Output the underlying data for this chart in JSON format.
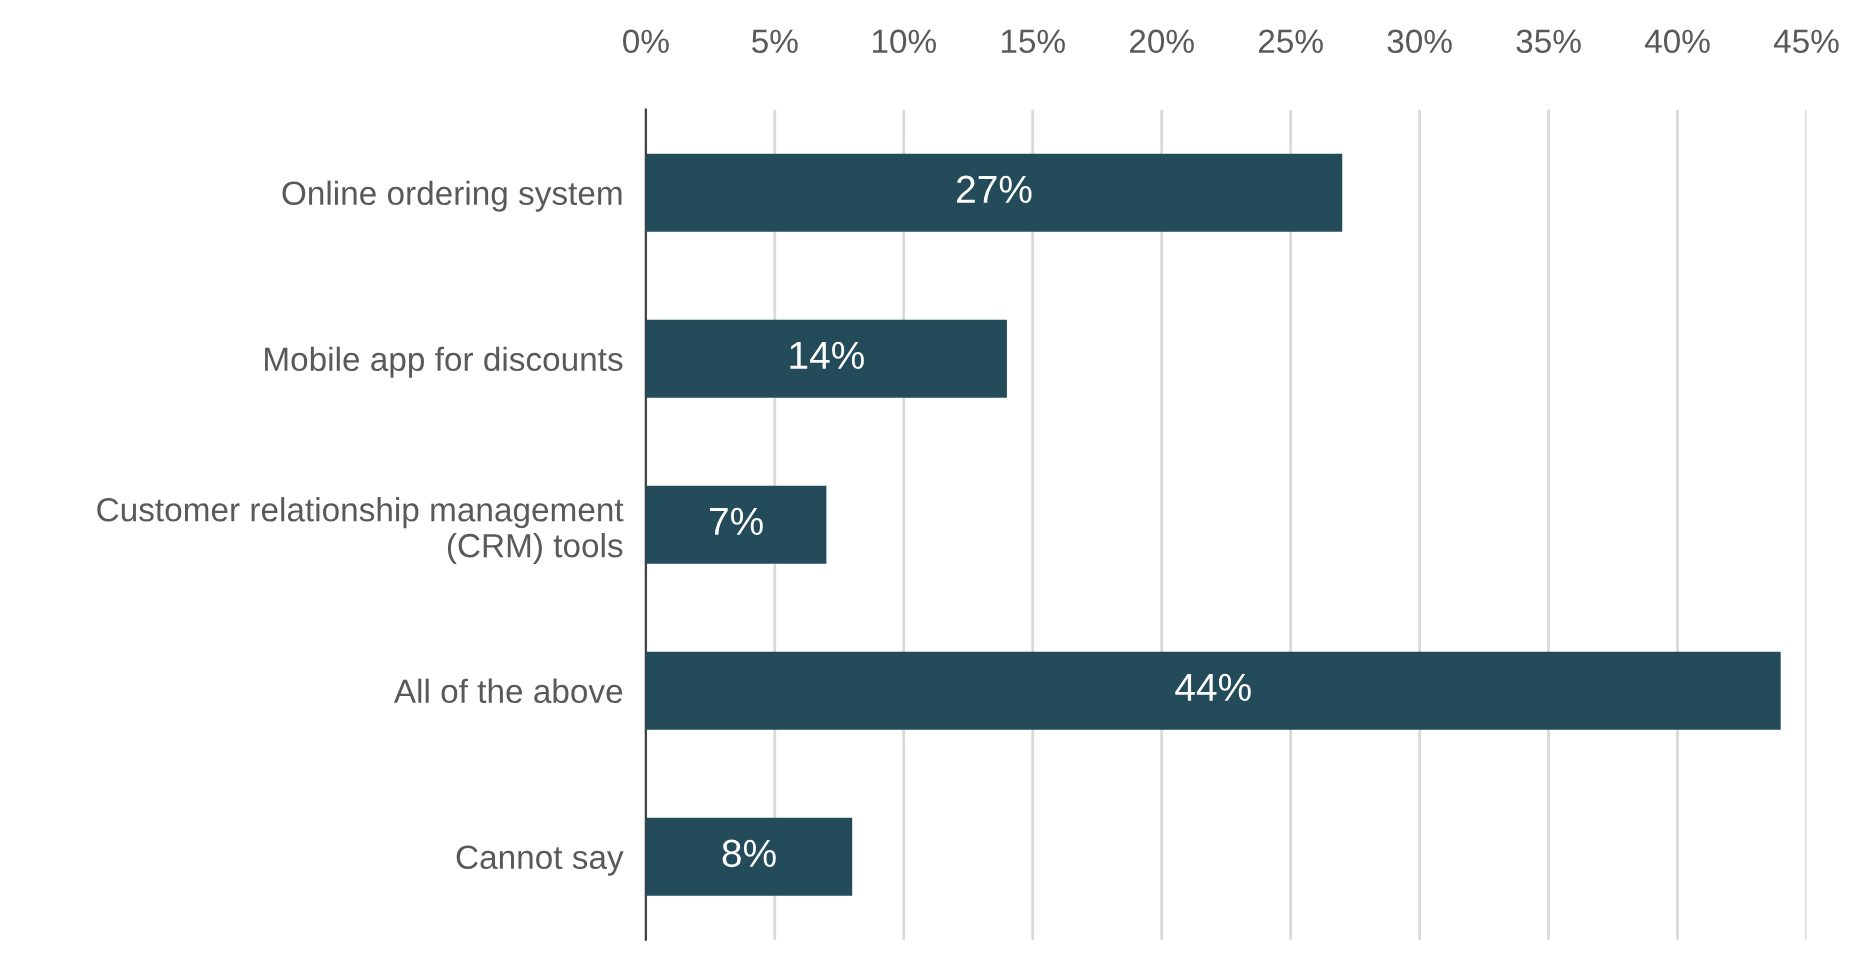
{
  "chart_data": {
    "type": "bar",
    "orientation": "horizontal",
    "categories": [
      "Online ordering system",
      "Mobile app for discounts",
      "Customer relationship management\n(CRM) tools",
      "All of the above",
      "Cannot say"
    ],
    "values": [
      27,
      14,
      7,
      44,
      8
    ],
    "value_labels": [
      "27%",
      "14%",
      "7%",
      "44%",
      "8%"
    ],
    "color": "#234b5a",
    "xlim": [
      0,
      45
    ],
    "xticks": [
      {
        "value": 0,
        "label": "0%"
      },
      {
        "value": 5,
        "label": "5%"
      },
      {
        "value": 10,
        "label": "10%"
      },
      {
        "value": 15,
        "label": "15%"
      },
      {
        "value": 20,
        "label": "20%"
      },
      {
        "value": 25,
        "label": "25%"
      },
      {
        "value": 30,
        "label": "30%"
      },
      {
        "value": 35,
        "label": "35%"
      },
      {
        "value": 40,
        "label": "40%"
      },
      {
        "value": 45,
        "label": "45%"
      }
    ],
    "grid": "x",
    "legend": false
  }
}
